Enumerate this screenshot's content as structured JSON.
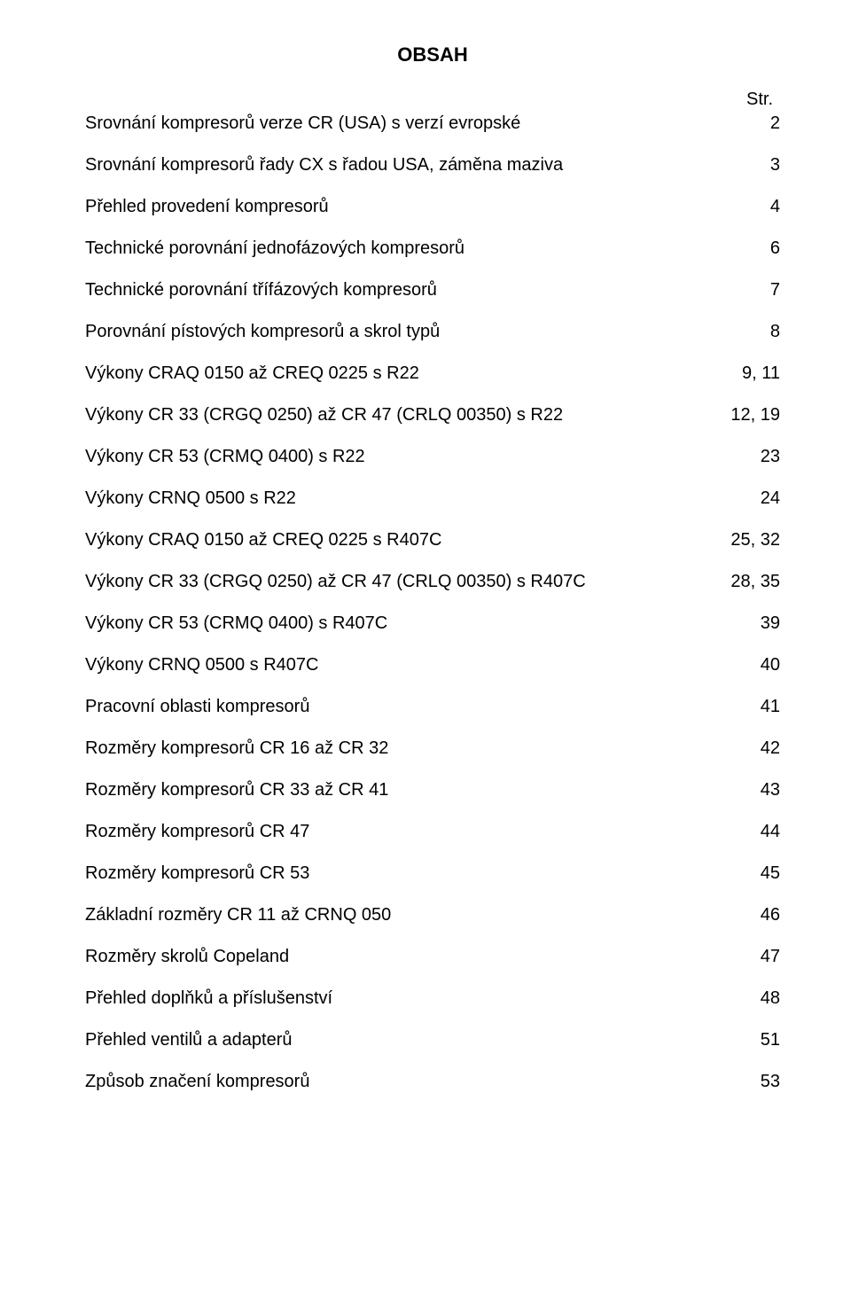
{
  "title": "OBSAH",
  "page_header": "Str.",
  "font": {
    "family": "Arial",
    "size_pt": 15,
    "title_size_pt": 17,
    "title_weight": "bold",
    "color": "#000000"
  },
  "background_color": "#ffffff",
  "entries": [
    {
      "label": "Srovnání kompresorů verze CR (USA) s verzí evropské",
      "page": "2"
    },
    {
      "label": "Srovnání kompresorů řady CX s řadou USA, záměna maziva",
      "page": "3"
    },
    {
      "label": "Přehled provedení kompresorů",
      "page": "4"
    },
    {
      "label": "Technické porovnání jednofázových kompresorů",
      "page": "6"
    },
    {
      "label": "Technické porovnání třífázových kompresorů",
      "page": "7"
    },
    {
      "label": "Porovnání pístových kompresorů a skrol typů",
      "page": "8"
    },
    {
      "label": "Výkony CRAQ 0150 až CREQ 0225 s R22",
      "page": "9, 11"
    },
    {
      "label": "Výkony CR 33 (CRGQ 0250) až CR 47 (CRLQ 00350) s R22",
      "page": "12, 19"
    },
    {
      "label": "Výkony CR 53 (CRMQ 0400) s R22",
      "page": "23"
    },
    {
      "label": "Výkony CRNQ 0500 s R22",
      "page": "24"
    },
    {
      "label": "Výkony CRAQ 0150 až CREQ 0225 s R407C",
      "page": "25, 32"
    },
    {
      "label": "Výkony CR 33 (CRGQ 0250) až CR 47 (CRLQ 00350) s R407C",
      "page": "28, 35"
    },
    {
      "label": "Výkony CR 53 (CRMQ 0400) s R407C",
      "page": "39"
    },
    {
      "label": "Výkony CRNQ 0500 s R407C",
      "page": "40"
    },
    {
      "label": "Pracovní oblasti kompresorů",
      "page": "41"
    },
    {
      "label": "Rozměry kompresorů CR 16 až CR 32",
      "page": "42"
    },
    {
      "label": "Rozměry kompresorů CR 33 až CR 41",
      "page": "43"
    },
    {
      "label": "Rozměry kompresorů CR 47",
      "page": "44"
    },
    {
      "label": "Rozměry kompresorů CR 53",
      "page": "45"
    },
    {
      "label": "Základní rozměry CR 11 až CRNQ 050",
      "page": "46"
    },
    {
      "label": "Rozměry skrolů Copeland",
      "page": "47"
    },
    {
      "label": "Přehled doplňků a příslušenství",
      "page": "48"
    },
    {
      "label": "Přehled ventilů a adapterů",
      "page": "51"
    },
    {
      "label": "Způsob značení kompresorů",
      "page": "53"
    }
  ]
}
